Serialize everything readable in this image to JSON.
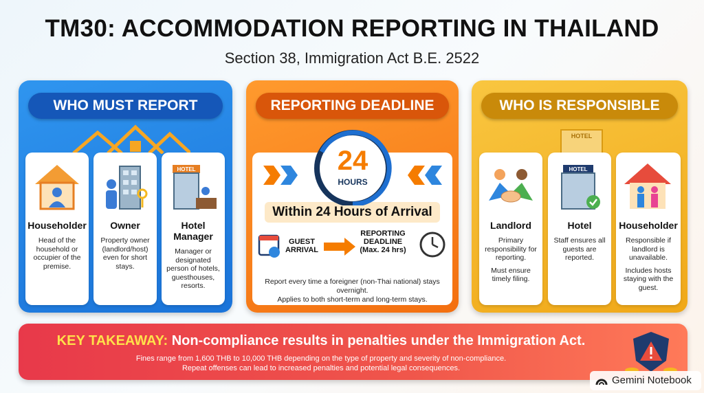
{
  "header": {
    "title": "TM30: ACCOMMODATION REPORTING IN THAILAND",
    "subtitle": "Section 38, Immigration Act B.E. 2522"
  },
  "panels": [
    {
      "heading": "WHO MUST REPORT",
      "cards": [
        {
          "title": "Householder",
          "text": [
            "Head of the household or occupier of the premise."
          ]
        },
        {
          "title": "Owner",
          "text": [
            "Property owner (landlord/host) even for short stays."
          ]
        },
        {
          "title": "Hotel Manager",
          "sign": "HOTEL",
          "text": [
            "Manager or designated person of hotels, guesthouses, resorts."
          ]
        }
      ]
    },
    {
      "heading": "REPORTING DEADLINE",
      "clock_number": "24",
      "clock_unit": "HOURS",
      "banner": "Within 24 Hours of Arrival",
      "flow_start": "GUEST ARRIVAL",
      "flow_end": "REPORTING DEADLINE",
      "flow_end_note": "(Max. 24 hrs)",
      "notes": [
        "Report every time a foreigner (non-Thai national) stays overnight.",
        "Applies to both short-term and long-term stays."
      ]
    },
    {
      "heading": "WHO IS RESPONSIBLE",
      "skyline_sign": "HOTEL",
      "cards": [
        {
          "title": "Landlord",
          "text": [
            "Primary responsibility for reporting.",
            "Must ensure timely filing."
          ]
        },
        {
          "title": "Hotel",
          "sign": "HOTEL",
          "text": [
            "Staff ensures all guests are reported."
          ]
        },
        {
          "title": "Householder",
          "text": [
            "Responsible if landlord is unavailable.",
            "Includes hosts staying with the guest."
          ]
        }
      ]
    }
  ],
  "takeaway": {
    "label": "KEY TAKEAWAY:",
    "text": "Non-compliance results in penalties under the Immigration Act.",
    "details": [
      "Fines range from 1,600 THB to 10,000 THB depending on the type of property and severity of non-compliance.",
      "Repeat offenses can lead to increased penalties and potential legal consequences."
    ]
  },
  "brand": "Gemini Notebook"
}
